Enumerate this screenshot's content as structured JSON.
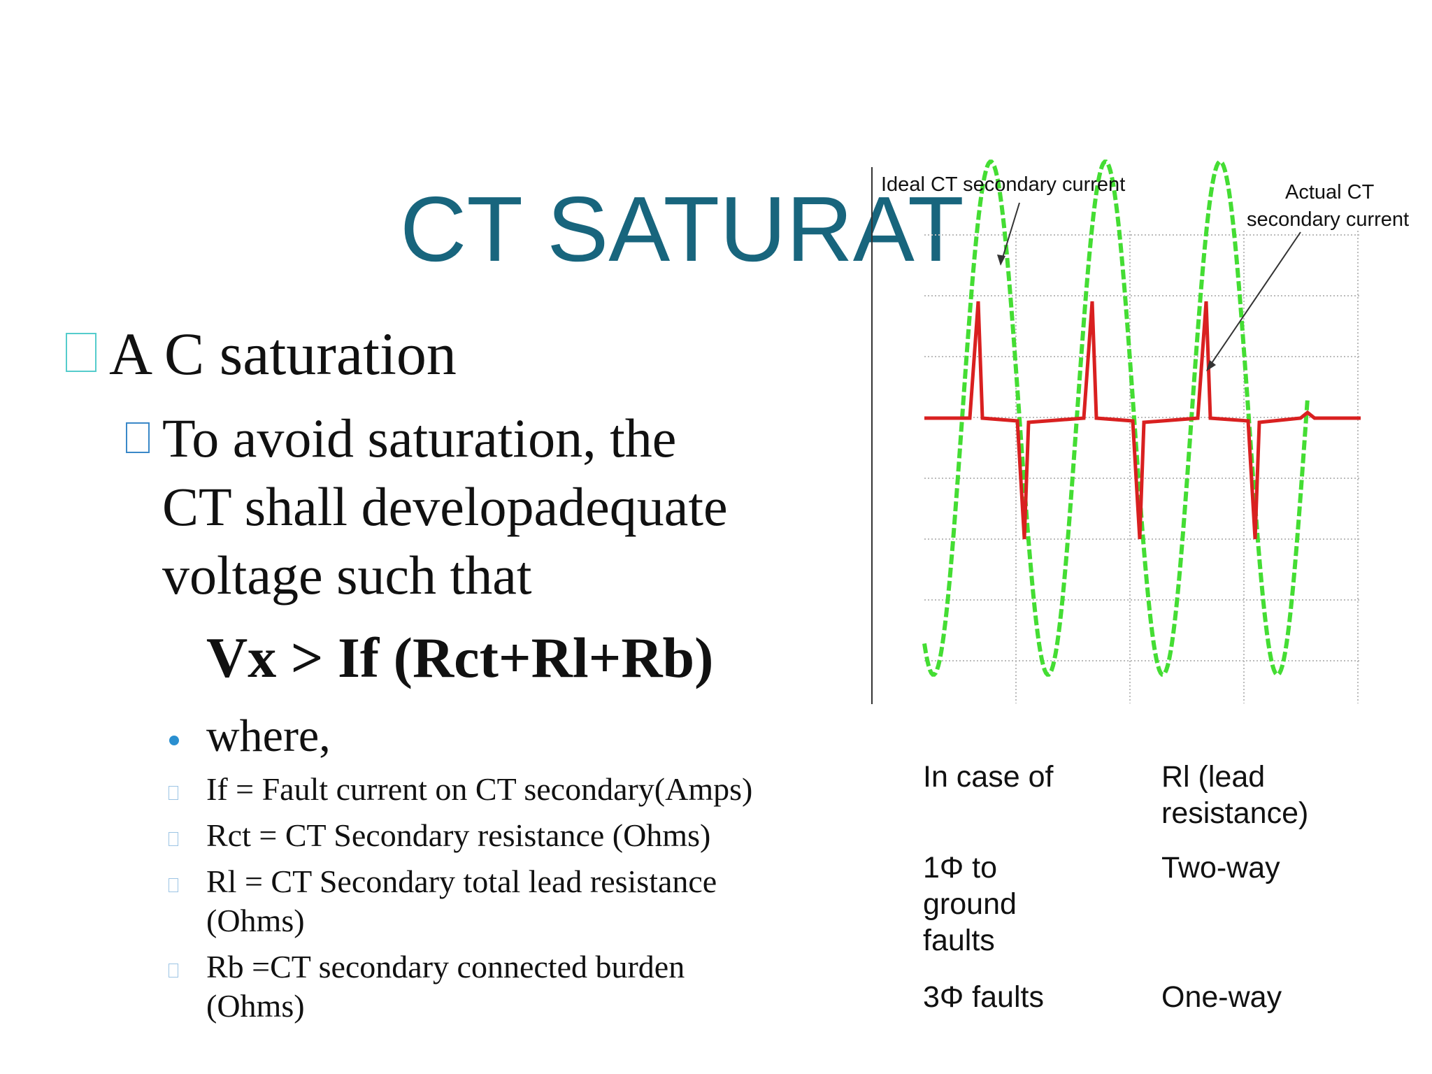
{
  "title": "CT SATURAT",
  "bullets": [
    "A C  saturation"
  ],
  "sub_bullet": [
    "To  avoid saturation, the",
    "CT shall developadequate",
    "voltage such that"
  ],
  "formula": "Vx > If (Rct+Rl+Rb)",
  "where": "where,",
  "definitions": [
    [
      "If = Fault current on CT secondary(Amps)"
    ],
    [
      "Rct = CT Secondary resistance (Ohms)"
    ],
    [
      "Rl = CT Secondary total lead resistance",
      "(Ohms)"
    ],
    [
      "Rb =CT secondary connected burden",
      "(Ohms)"
    ]
  ],
  "figure": {
    "ideal_label": "Ideal CT secondary current",
    "actual_label": [
      "Actual CT",
      "secondary current"
    ]
  },
  "table": {
    "rows": [
      [
        [
          "In case of"
        ],
        [
          "Rl (lead",
          "resistance)"
        ]
      ],
      [
        [
          "1Φ to",
          "ground",
          "faults"
        ],
        [
          "Two-way"
        ]
      ],
      [
        [
          "3Φ faults"
        ],
        [
          "One-way"
        ]
      ]
    ]
  }
}
